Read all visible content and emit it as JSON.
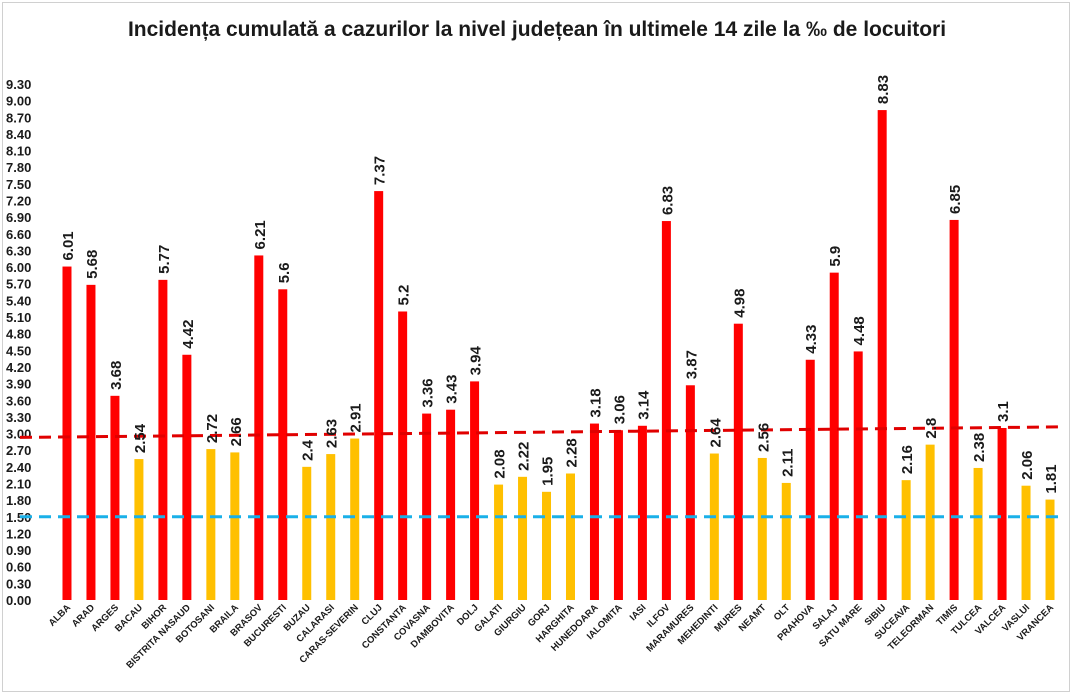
{
  "chart_data": {
    "type": "bar",
    "title": "Incidența cumulată a cazurilor la nivel județean în ultimele 14 zile la ‰ de locuitori",
    "xlabel": "",
    "ylabel": "",
    "ylim": [
      0,
      9.3
    ],
    "yticks": [
      "0.00",
      "0.30",
      "0.60",
      "0.90",
      "1.20",
      "1.50",
      "1.80",
      "2.10",
      "2.40",
      "2.70",
      "3.00",
      "3.30",
      "3.60",
      "3.90",
      "4.20",
      "4.50",
      "4.80",
      "5.10",
      "5.40",
      "5.70",
      "6.00",
      "6.30",
      "6.60",
      "6.90",
      "7.20",
      "7.50",
      "7.80",
      "8.10",
      "8.40",
      "8.70",
      "9.00",
      "9.30"
    ],
    "categories": [
      "ALBA",
      "ARAD",
      "ARGES",
      "BACAU",
      "BIHOR",
      "BISTRITA NASAUD",
      "BOTOSANI",
      "BRAILA",
      "BRASOV",
      "BUCURESTI",
      "BUZAU",
      "CALARASI",
      "CARAS-SEVERIN",
      "CLUJ",
      "CONSTANTA",
      "COVASNA",
      "DAMBOVITA",
      "DOLJ",
      "GALATI",
      "GIURGIU",
      "GORJ",
      "HARGHITA",
      "HUNEDOARA",
      "IALOMITA",
      "IASI",
      "ILFOV",
      "MARAMURES",
      "MEHEDINTI",
      "MURES",
      "NEAMT",
      "OLT",
      "PRAHOVA",
      "SALAJ",
      "SATU MARE",
      "SIBIU",
      "SUCEAVA",
      "TELEORMAN",
      "TIMIS",
      "TULCEA",
      "VALCEA",
      "VASLUI",
      "VRANCEA"
    ],
    "values": [
      6.01,
      5.68,
      3.68,
      2.54,
      5.77,
      4.42,
      2.72,
      2.66,
      6.21,
      5.6,
      2.4,
      2.63,
      2.91,
      7.37,
      5.2,
      3.36,
      3.43,
      3.94,
      2.08,
      2.22,
      1.95,
      2.28,
      3.18,
      3.06,
      3.14,
      6.83,
      3.87,
      2.64,
      4.98,
      2.56,
      2.11,
      4.33,
      5.9,
      4.48,
      8.83,
      2.16,
      2.8,
      6.85,
      2.38,
      3.1,
      2.06,
      1.81
    ],
    "data_labels": [
      "6.01",
      "5.68",
      "3.68",
      "2.54",
      "5.77",
      "4.42",
      "2.72",
      "2.66",
      "6.21",
      "5.6",
      "2.4",
      "2.63",
      "2.91",
      "7.37",
      "5.2",
      "3.36",
      "3.43",
      "3.94",
      "2.08",
      "2.22",
      "1.95",
      "2.28",
      "3.18",
      "3.06",
      "3.14",
      "6.83",
      "3.87",
      "2.64",
      "4.98",
      "2.56",
      "2.11",
      "4.33",
      "5.9",
      "4.48",
      "8.83",
      "2.16",
      "2.8",
      "6.85",
      "2.38",
      "3.1",
      "2.06",
      "1.81"
    ],
    "colors": {
      "above_threshold": "#ff0000",
      "below_threshold": "#ffc000",
      "trend_line": "#e00000",
      "reference_line": "#1ab0e8"
    },
    "color_threshold": 3.0,
    "trend_line": {
      "start": 2.93,
      "end": 3.12,
      "style": "dashed"
    },
    "reference_line": {
      "value": 1.5,
      "style": "dashed"
    },
    "grid": false,
    "legend": "none"
  }
}
